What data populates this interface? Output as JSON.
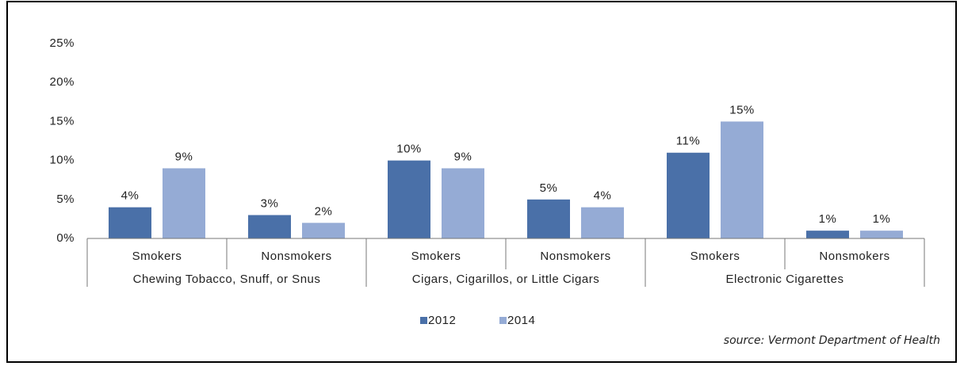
{
  "chart_data": {
    "type": "bar",
    "categories": [
      "Smokers",
      "Nonsmokers",
      "Smokers",
      "Nonsmokers",
      "Smokers",
      "Nonsmokers"
    ],
    "groups": [
      "Chewing Tobacco, Snuff, or Snus",
      "Cigars, Cigarillos, or Little Cigars",
      "Electronic Cigarettes"
    ],
    "series": [
      {
        "name": "2012",
        "color": "#4a70a8",
        "values": [
          4,
          3,
          10,
          5,
          11,
          1
        ],
        "value_labels": [
          "4%",
          "3%",
          "10%",
          "5%",
          "11%",
          "1%"
        ]
      },
      {
        "name": "2014",
        "color": "#95abd5",
        "values": [
          9,
          2,
          9,
          4,
          15,
          1
        ],
        "value_labels": [
          "9%",
          "2%",
          "9%",
          "4%",
          "15%",
          "1%"
        ]
      }
    ],
    "ylim": [
      0,
      25
    ],
    "yticks": [
      {
        "value": 0,
        "label": "0%"
      },
      {
        "value": 5,
        "label": "5%"
      },
      {
        "value": 10,
        "label": "10%"
      },
      {
        "value": 15,
        "label": "15%"
      },
      {
        "value": 20,
        "label": "20%"
      },
      {
        "value": 25,
        "label": "25%"
      }
    ],
    "grid": false,
    "legend": "bottom",
    "source": "source: Vermont Department of Health"
  }
}
